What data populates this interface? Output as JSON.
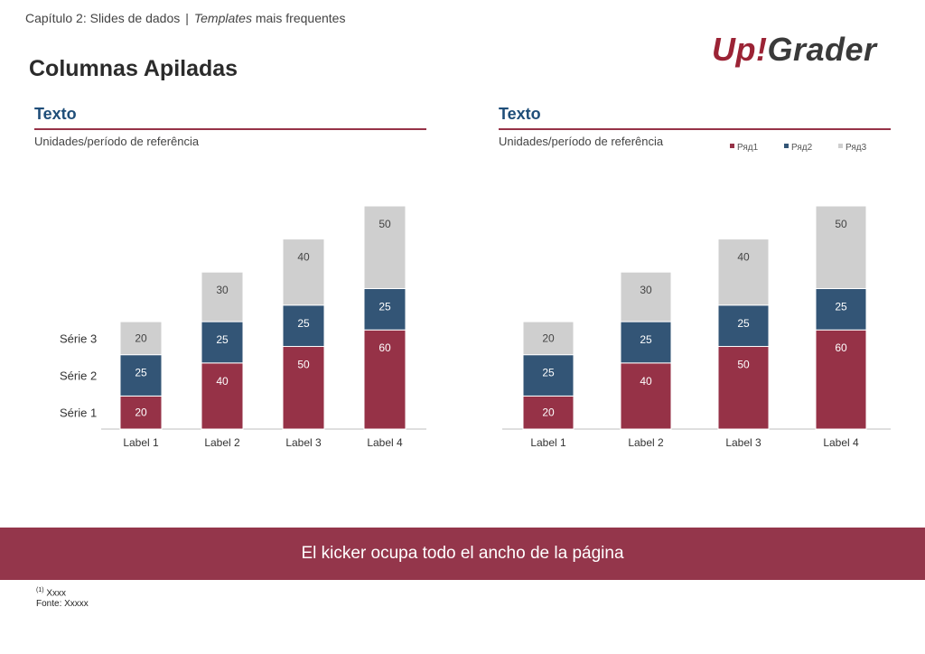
{
  "header": {
    "breadcrumb_chapter": "Capítulo 2: Slides de dados",
    "breadcrumb_separator": "|",
    "breadcrumb_italic": "Templates",
    "breadcrumb_rest": "mais frequentes",
    "page_title": "Columnas Apiladas",
    "logo_up": "Up!",
    "logo_grader": "Grader"
  },
  "colors": {
    "serie1": "#963247",
    "serie2": "#335576",
    "serie3": "#cfcfcf",
    "kicker": "#94364b",
    "title_blue": "#1f4e79"
  },
  "chart_data": [
    {
      "type": "bar",
      "stacked": true,
      "title": "Texto",
      "subtitle": "Unidades/período de referência",
      "categories": [
        "Label 1",
        "Label 2",
        "Label 3",
        "Label 4"
      ],
      "series": [
        {
          "name": "Série 1",
          "values": [
            20,
            40,
            50,
            60
          ]
        },
        {
          "name": "Série 2",
          "values": [
            25,
            25,
            25,
            25
          ]
        },
        {
          "name": "Série 3",
          "values": [
            20,
            30,
            40,
            50
          ]
        }
      ],
      "legend": "left-inline",
      "ylim": [
        0,
        140
      ]
    },
    {
      "type": "bar",
      "stacked": true,
      "title": "Texto",
      "subtitle": "Unidades/período de referência",
      "categories": [
        "Label 1",
        "Label 2",
        "Label 3",
        "Label 4"
      ],
      "series": [
        {
          "name": "Ряд1",
          "values": [
            20,
            40,
            50,
            60
          ]
        },
        {
          "name": "Ряд2",
          "values": [
            25,
            25,
            25,
            25
          ]
        },
        {
          "name": "Ряд3",
          "values": [
            20,
            30,
            40,
            50
          ]
        }
      ],
      "legend": "top-right",
      "ylim": [
        0,
        140
      ]
    }
  ],
  "kicker": "El kicker ocupa todo el ancho de la página",
  "footnote": {
    "ref_mark": "(1)",
    "ref_text": "Xxxx",
    "source": "Fonte: Xxxxx"
  }
}
